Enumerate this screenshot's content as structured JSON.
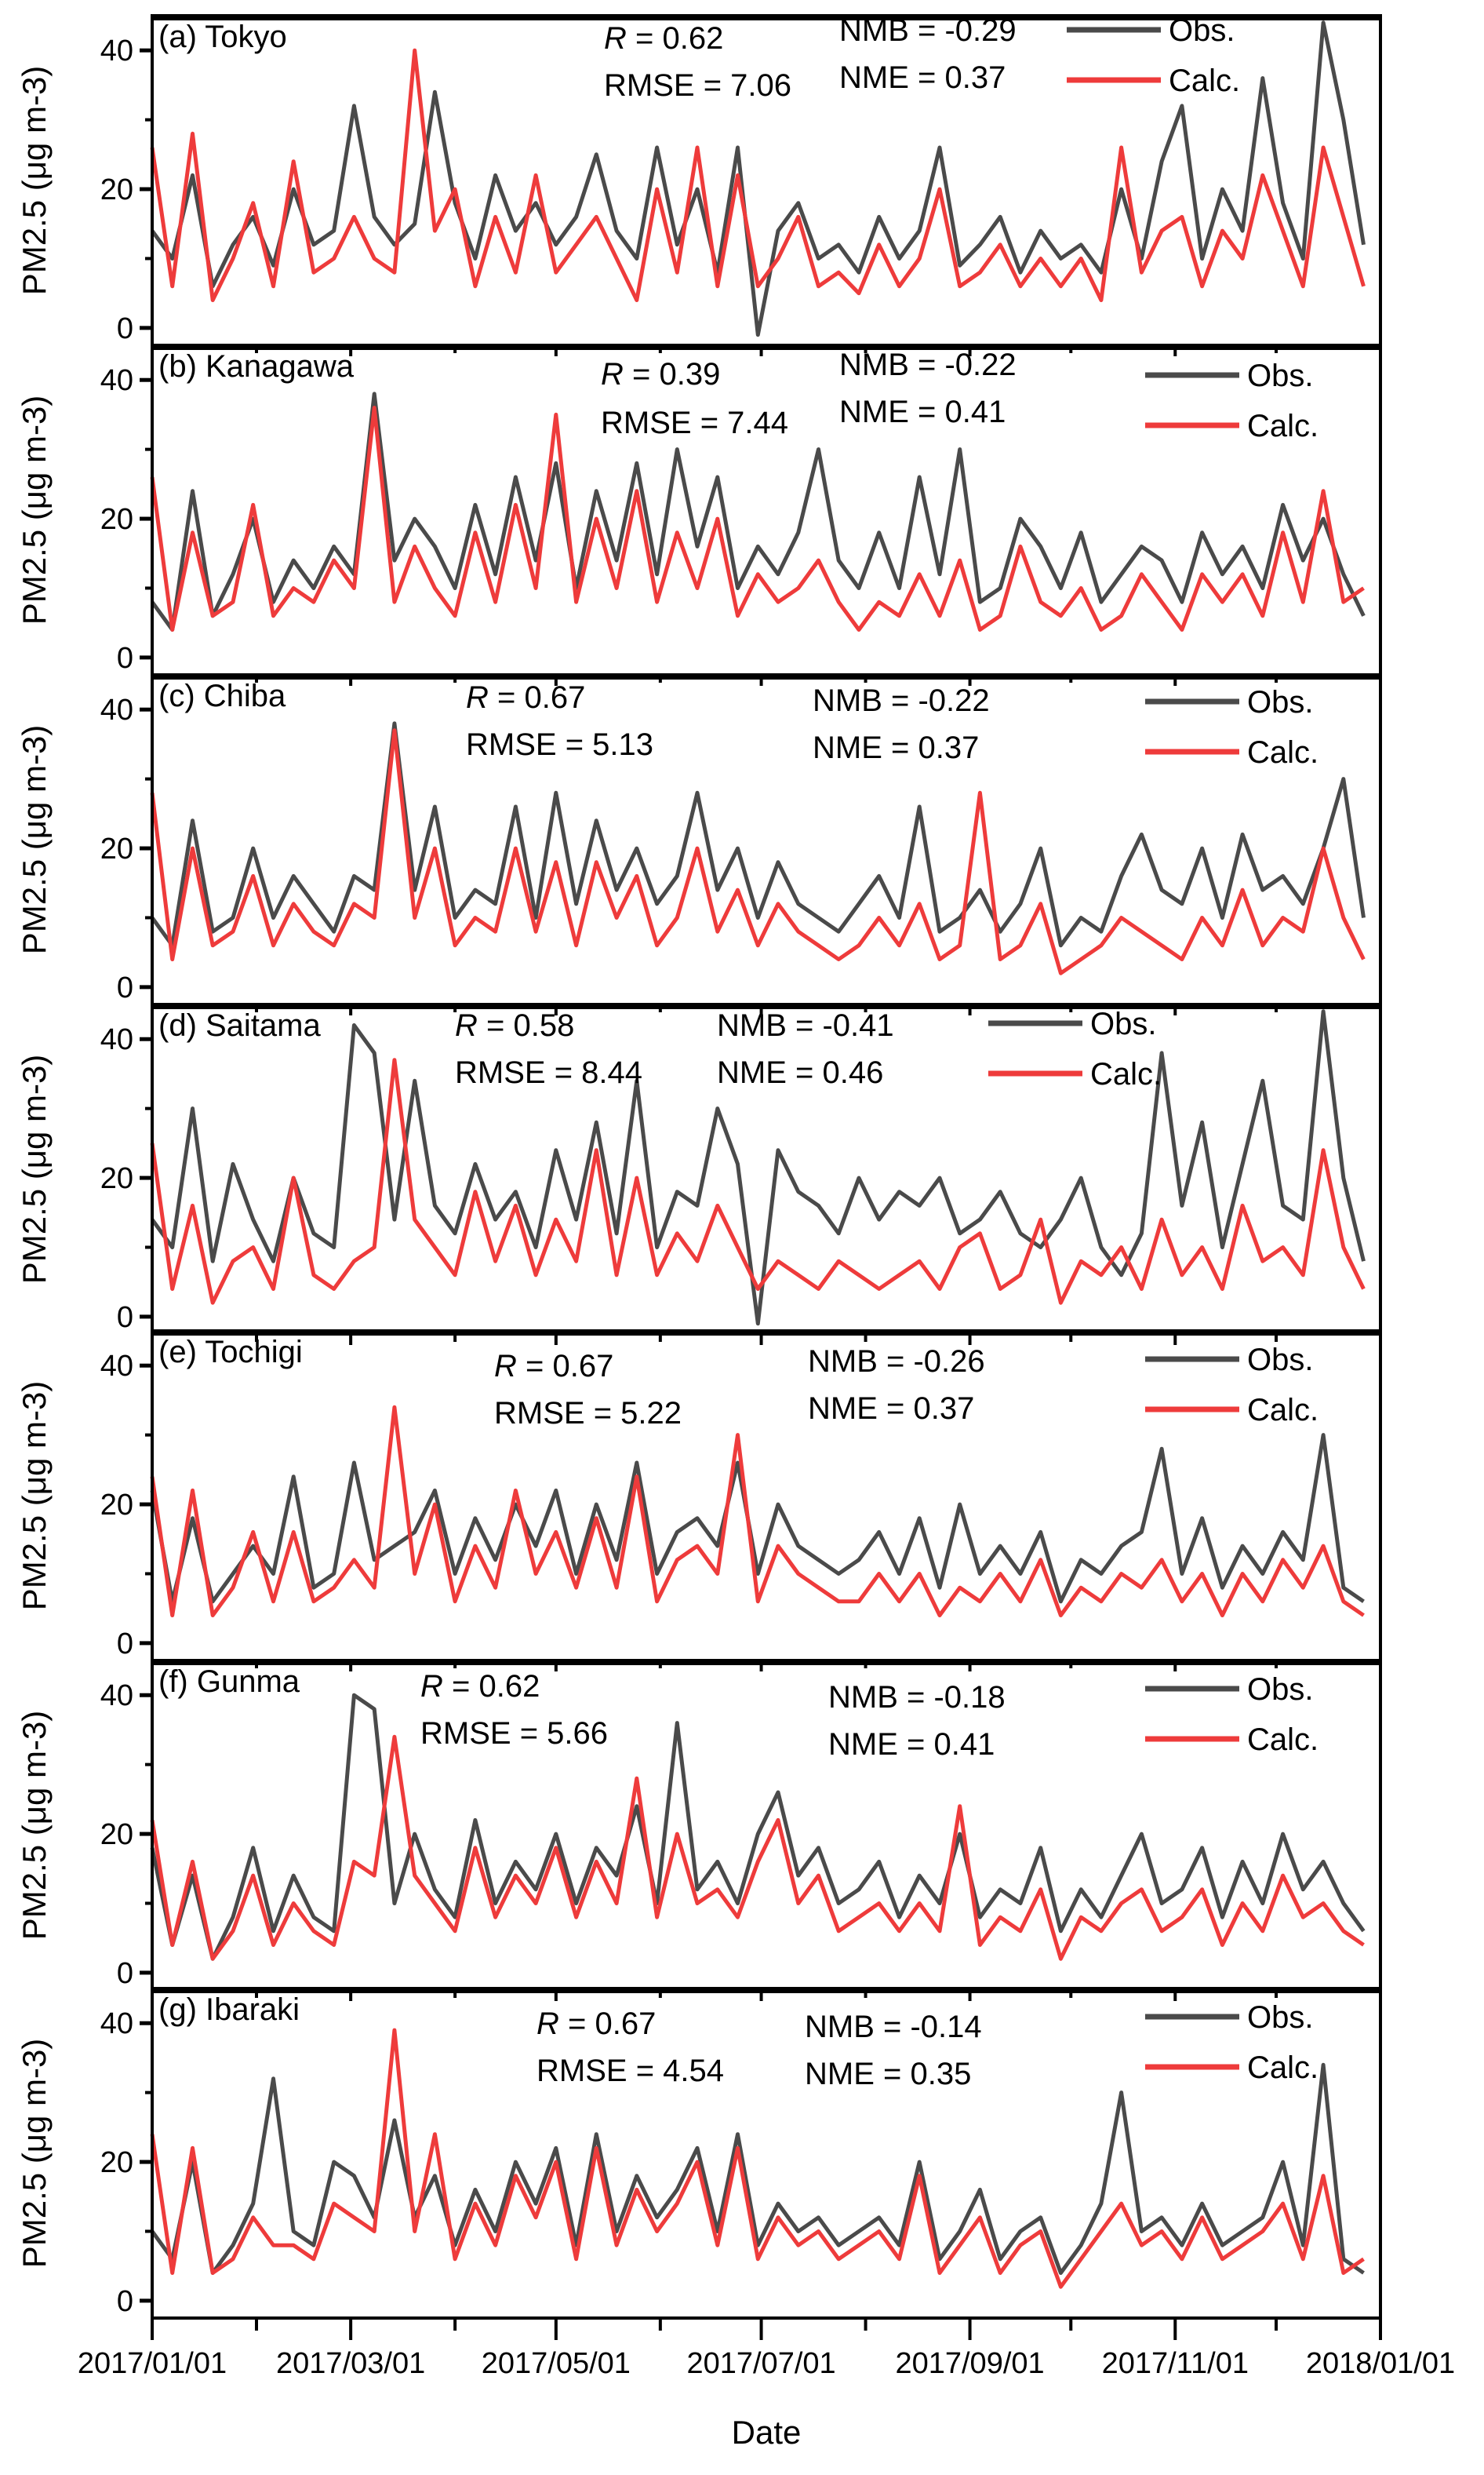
{
  "chart_data": {
    "type": "line",
    "title": "",
    "xlabel": "Date",
    "ylabel": "PM2.5 (μg m-3)",
    "ylabel_parts": {
      "main": "PM",
      "sub": "2.5",
      "unit_open": " (μg m",
      "sup": "-3",
      "unit_close": ")"
    },
    "x_start": "2017-01-01",
    "x_step_days": 6,
    "x_ticks": [
      "2017/01/01",
      "2017/03/01",
      "2017/05/01",
      "2017/07/01",
      "2017/09/01",
      "2017/11/01",
      "2018/01/01"
    ],
    "x_tick_days": [
      0,
      59,
      120,
      181,
      243,
      304,
      365
    ],
    "x_minor_tick_days": [
      31,
      90,
      151,
      212,
      273,
      334
    ],
    "ylim": [
      -2.5,
      45
    ],
    "y_ticks": [
      0,
      20,
      40
    ],
    "y_minor_ticks": [
      10,
      30
    ],
    "grid": false,
    "legend_placement": "top-right",
    "legend": [
      "Obs.",
      "Calc."
    ],
    "colors": {
      "obs": "#4a4a4a",
      "calc": "#ee3b3b"
    },
    "stat_labels": {
      "R": "R",
      "RMSE": "RMSE",
      "NMB": "NMB",
      "NME": "NME",
      "equals": " = "
    },
    "panels": [
      {
        "label": "(a) Tokyo",
        "R": "0.62",
        "RMSE": "7.06",
        "NMB": "-0.29",
        "NME": "0.37",
        "series": [
          {
            "name": "Obs.",
            "values": [
              14,
              10,
              22,
              6,
              12,
              16,
              9,
              20,
              12,
              14,
              32,
              16,
              12,
              15,
              34,
              18,
              10,
              22,
              14,
              18,
              12,
              16,
              25,
              14,
              10,
              26,
              12,
              20,
              8,
              26,
              -1,
              14,
              18,
              10,
              12,
              8,
              16,
              10,
              14,
              26,
              9,
              12,
              16,
              8,
              14,
              10,
              12,
              8,
              20,
              10,
              24,
              32,
              10,
              20,
              14,
              36,
              18,
              10,
              44,
              30,
              12
            ]
          },
          {
            "name": "Calc.",
            "values": [
              26,
              6,
              28,
              4,
              10,
              18,
              6,
              24,
              8,
              10,
              16,
              10,
              8,
              40,
              14,
              20,
              6,
              16,
              8,
              22,
              8,
              12,
              16,
              10,
              4,
              20,
              8,
              26,
              6,
              22,
              6,
              10,
              16,
              6,
              8,
              5,
              12,
              6,
              10,
              20,
              6,
              8,
              12,
              6,
              10,
              6,
              10,
              4,
              26,
              8,
              14,
              16,
              6,
              14,
              10,
              22,
              14,
              6,
              26,
              16,
              6
            ]
          }
        ]
      },
      {
        "label": "(b) Kanagawa",
        "R": "0.39",
        "RMSE": "7.44",
        "NMB": "-0.22",
        "NME": "0.41",
        "series": [
          {
            "name": "Obs.",
            "values": [
              8,
              4,
              24,
              6,
              12,
              20,
              8,
              14,
              10,
              16,
              12,
              38,
              14,
              20,
              16,
              10,
              22,
              12,
              26,
              14,
              28,
              10,
              24,
              14,
              28,
              12,
              30,
              16,
              26,
              10,
              16,
              12,
              18,
              30,
              14,
              10,
              18,
              10,
              26,
              12,
              30,
              8,
              10,
              20,
              16,
              10,
              18,
              8,
              12,
              16,
              14,
              8,
              18,
              12,
              16,
              10,
              22,
              14,
              20,
              12,
              6
            ]
          },
          {
            "name": "Calc.",
            "values": [
              26,
              4,
              18,
              6,
              8,
              22,
              6,
              10,
              8,
              14,
              10,
              36,
              8,
              16,
              10,
              6,
              18,
              8,
              22,
              10,
              35,
              8,
              20,
              10,
              24,
              8,
              18,
              10,
              20,
              6,
              12,
              8,
              10,
              14,
              8,
              4,
              8,
              6,
              12,
              6,
              14,
              4,
              6,
              16,
              8,
              6,
              10,
              4,
              6,
              12,
              8,
              4,
              12,
              8,
              12,
              6,
              18,
              8,
              24,
              8,
              10
            ]
          }
        ]
      },
      {
        "label": "(c) Chiba",
        "R": "0.67",
        "RMSE": "5.13",
        "NMB": "-0.22",
        "NME": "0.37",
        "series": [
          {
            "name": "Obs.",
            "values": [
              10,
              6,
              24,
              8,
              10,
              20,
              10,
              16,
              12,
              8,
              16,
              14,
              38,
              14,
              26,
              10,
              14,
              12,
              26,
              10,
              28,
              12,
              24,
              14,
              20,
              12,
              16,
              28,
              14,
              20,
              10,
              18,
              12,
              10,
              8,
              12,
              16,
              10,
              26,
              8,
              10,
              14,
              8,
              12,
              20,
              6,
              10,
              8,
              16,
              22,
              14,
              12,
              20,
              10,
              22,
              14,
              16,
              12,
              20,
              30,
              10
            ]
          },
          {
            "name": "Calc.",
            "values": [
              28,
              4,
              20,
              6,
              8,
              16,
              6,
              12,
              8,
              6,
              12,
              10,
              37,
              10,
              20,
              6,
              10,
              8,
              20,
              8,
              18,
              6,
              18,
              10,
              16,
              6,
              10,
              20,
              8,
              14,
              6,
              12,
              8,
              6,
              4,
              6,
              10,
              6,
              12,
              4,
              6,
              28,
              4,
              6,
              12,
              2,
              4,
              6,
              10,
              8,
              6,
              4,
              10,
              6,
              14,
              6,
              10,
              8,
              20,
              10,
              4
            ]
          }
        ]
      },
      {
        "label": "(d) Saitama",
        "R": "0.58",
        "RMSE": "8.44",
        "NMB": "-0.41",
        "NME": "0.46",
        "series": [
          {
            "name": "Obs.",
            "values": [
              14,
              10,
              30,
              8,
              22,
              14,
              8,
              20,
              12,
              10,
              42,
              38,
              14,
              34,
              16,
              12,
              22,
              14,
              18,
              10,
              24,
              14,
              28,
              12,
              34,
              10,
              18,
              16,
              30,
              22,
              -1,
              24,
              18,
              16,
              12,
              20,
              14,
              18,
              16,
              20,
              12,
              14,
              18,
              12,
              10,
              14,
              20,
              10,
              6,
              12,
              38,
              16,
              28,
              10,
              22,
              34,
              16,
              14,
              44,
              20,
              8
            ]
          },
          {
            "name": "Calc.",
            "values": [
              25,
              4,
              16,
              2,
              8,
              10,
              4,
              20,
              6,
              4,
              8,
              10,
              37,
              14,
              10,
              6,
              18,
              8,
              16,
              6,
              14,
              8,
              24,
              6,
              20,
              6,
              12,
              8,
              16,
              10,
              4,
              8,
              6,
              4,
              8,
              6,
              4,
              6,
              8,
              4,
              10,
              12,
              4,
              6,
              14,
              2,
              8,
              6,
              10,
              4,
              14,
              6,
              10,
              4,
              16,
              8,
              10,
              6,
              24,
              10,
              4
            ]
          }
        ]
      },
      {
        "label": "(e) Tochigi",
        "R": "0.67",
        "RMSE": "5.22",
        "NMB": "-0.26",
        "NME": "0.37",
        "series": [
          {
            "name": "Obs.",
            "values": [
              22,
              6,
              18,
              6,
              10,
              14,
              10,
              24,
              8,
              10,
              26,
              12,
              14,
              16,
              22,
              10,
              18,
              12,
              20,
              14,
              22,
              10,
              20,
              12,
              26,
              10,
              16,
              18,
              14,
              26,
              10,
              20,
              14,
              12,
              10,
              12,
              16,
              10,
              18,
              8,
              20,
              10,
              14,
              10,
              16,
              6,
              12,
              10,
              14,
              16,
              28,
              10,
              18,
              8,
              14,
              10,
              16,
              12,
              30,
              8,
              6
            ]
          },
          {
            "name": "Calc.",
            "values": [
              24,
              4,
              22,
              4,
              8,
              16,
              6,
              16,
              6,
              8,
              12,
              8,
              34,
              10,
              20,
              6,
              14,
              8,
              22,
              10,
              16,
              8,
              18,
              8,
              24,
              6,
              12,
              14,
              10,
              30,
              6,
              14,
              10,
              8,
              6,
              6,
              10,
              6,
              10,
              4,
              8,
              6,
              10,
              6,
              12,
              4,
              8,
              6,
              10,
              8,
              12,
              6,
              10,
              4,
              10,
              6,
              12,
              8,
              14,
              6,
              4
            ]
          }
        ]
      },
      {
        "label": "(f) Gunma",
        "R": "0.62",
        "RMSE": "5.66",
        "NMB": "-0.18",
        "NME": "0.41",
        "series": [
          {
            "name": "Obs.",
            "values": [
              18,
              4,
              14,
              2,
              8,
              18,
              6,
              14,
              8,
              6,
              40,
              38,
              10,
              20,
              12,
              8,
              22,
              10,
              16,
              12,
              20,
              10,
              18,
              14,
              24,
              10,
              36,
              12,
              16,
              10,
              20,
              26,
              14,
              18,
              10,
              12,
              16,
              8,
              14,
              10,
              20,
              8,
              12,
              10,
              18,
              6,
              12,
              8,
              14,
              20,
              10,
              12,
              18,
              8,
              16,
              10,
              20,
              12,
              16,
              10,
              6
            ]
          },
          {
            "name": "Calc.",
            "values": [
              22,
              4,
              16,
              2,
              6,
              14,
              4,
              10,
              6,
              4,
              16,
              14,
              34,
              14,
              10,
              6,
              18,
              8,
              14,
              10,
              18,
              8,
              16,
              10,
              28,
              8,
              20,
              10,
              12,
              8,
              16,
              22,
              10,
              14,
              6,
              8,
              10,
              6,
              10,
              6,
              24,
              4,
              8,
              6,
              12,
              2,
              8,
              6,
              10,
              12,
              6,
              8,
              12,
              4,
              10,
              6,
              14,
              8,
              10,
              6,
              4
            ]
          }
        ]
      },
      {
        "label": "(g) Ibaraki",
        "R": "0.67",
        "RMSE": "4.54",
        "NMB": "-0.14",
        "NME": "0.35",
        "series": [
          {
            "name": "Obs.",
            "values": [
              10,
              6,
              20,
              4,
              8,
              14,
              32,
              10,
              8,
              20,
              18,
              12,
              26,
              12,
              18,
              8,
              16,
              10,
              20,
              14,
              22,
              8,
              24,
              10,
              18,
              12,
              16,
              22,
              10,
              24,
              8,
              14,
              10,
              12,
              8,
              10,
              12,
              8,
              20,
              6,
              10,
              16,
              6,
              10,
              12,
              4,
              8,
              14,
              30,
              10,
              12,
              8,
              14,
              8,
              10,
              12,
              20,
              8,
              34,
              6,
              4
            ]
          },
          {
            "name": "Calc.",
            "values": [
              24,
              4,
              22,
              4,
              6,
              12,
              8,
              8,
              6,
              14,
              12,
              10,
              39,
              10,
              24,
              6,
              14,
              8,
              18,
              12,
              20,
              6,
              22,
              8,
              16,
              10,
              14,
              20,
              8,
              22,
              6,
              12,
              8,
              10,
              6,
              8,
              10,
              6,
              18,
              4,
              8,
              12,
              4,
              8,
              10,
              2,
              6,
              10,
              14,
              8,
              10,
              6,
              12,
              6,
              8,
              10,
              14,
              6,
              18,
              4,
              6
            ]
          }
        ]
      }
    ]
  }
}
